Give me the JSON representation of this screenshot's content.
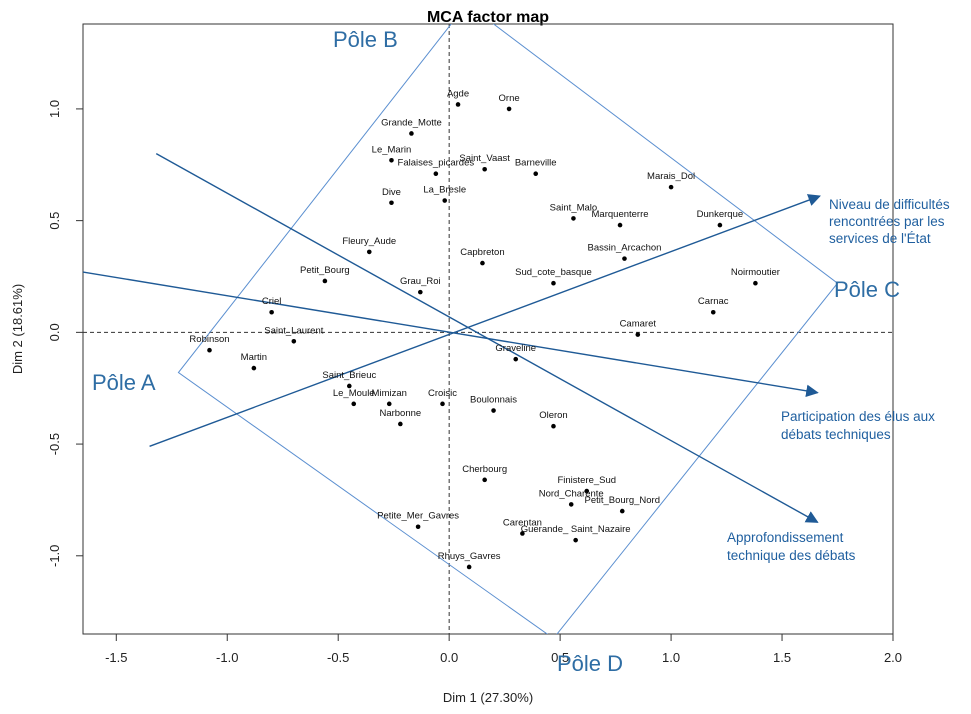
{
  "chart_data": {
    "type": "scatter",
    "title": "MCA factor map",
    "xlabel": "Dim 1 (27.30%)",
    "ylabel": "Dim 2 (18.61%)",
    "xlim": [
      -1.65,
      2.0
    ],
    "ylim": [
      -1.35,
      1.38
    ],
    "xticks": [
      -1.5,
      -1.0,
      -0.5,
      0.0,
      0.5,
      1.0,
      1.5,
      2.0
    ],
    "xtick_labels": [
      "-1.5",
      "-1.0",
      "-0.5",
      "0.0",
      "0.5",
      "1.0",
      "1.5",
      "2.0"
    ],
    "yticks": [
      -1.0,
      -0.5,
      0.0,
      0.5,
      1.0
    ],
    "ytick_labels": [
      "-1.0",
      "-0.5",
      "0.0",
      "0.5",
      "1.0"
    ],
    "reference_lines": {
      "x": 0,
      "y": 0,
      "style": "dashed"
    },
    "points": [
      {
        "label": "Agde",
        "x": 0.04,
        "y": 1.02
      },
      {
        "label": "Orne",
        "x": 0.27,
        "y": 1.0
      },
      {
        "label": "Grande_Motte",
        "x": -0.17,
        "y": 0.89
      },
      {
        "label": "Le_Marin",
        "x": -0.26,
        "y": 0.77
      },
      {
        "label": "Falaises_picardes",
        "x": -0.06,
        "y": 0.71
      },
      {
        "label": "Saint_Vaast",
        "x": 0.16,
        "y": 0.73
      },
      {
        "label": "Barneville",
        "x": 0.39,
        "y": 0.71
      },
      {
        "label": "Marais_Dol",
        "x": 1.0,
        "y": 0.65
      },
      {
        "label": "Dive",
        "x": -0.26,
        "y": 0.58
      },
      {
        "label": "La_Bresle",
        "x": -0.02,
        "y": 0.59
      },
      {
        "label": "Saint_Malo",
        "x": 0.56,
        "y": 0.51
      },
      {
        "label": "Marquenterre",
        "x": 0.77,
        "y": 0.48
      },
      {
        "label": "Dunkerque",
        "x": 1.22,
        "y": 0.48
      },
      {
        "label": "Fleury_Aude",
        "x": -0.36,
        "y": 0.36
      },
      {
        "label": "Capbreton",
        "x": 0.15,
        "y": 0.31
      },
      {
        "label": "Bassin_Arcachon",
        "x": 0.79,
        "y": 0.33
      },
      {
        "label": "Petit_Bourg",
        "x": -0.56,
        "y": 0.23
      },
      {
        "label": "Grau_Roi",
        "x": -0.13,
        "y": 0.18
      },
      {
        "label": "Sud_cote_basque",
        "x": 0.47,
        "y": 0.22
      },
      {
        "label": "Noirmoutier",
        "x": 1.38,
        "y": 0.22
      },
      {
        "label": "Criel",
        "x": -0.8,
        "y": 0.09
      },
      {
        "label": "Carnac",
        "x": 1.19,
        "y": 0.09
      },
      {
        "label": "Camaret",
        "x": 0.85,
        "y": -0.01
      },
      {
        "label": "Saint_Laurent",
        "x": -0.7,
        "y": -0.04
      },
      {
        "label": "Robinson",
        "x": -1.08,
        "y": -0.08
      },
      {
        "label": "Martin",
        "x": -0.88,
        "y": -0.16
      },
      {
        "label": "Graveline",
        "x": 0.3,
        "y": -0.12
      },
      {
        "label": "Saint_Brieuc",
        "x": -0.45,
        "y": -0.24
      },
      {
        "label": "Le_Moule",
        "x": -0.43,
        "y": -0.32
      },
      {
        "label": "Mimizan",
        "x": -0.27,
        "y": -0.32
      },
      {
        "label": "Croisic",
        "x": -0.03,
        "y": -0.32
      },
      {
        "label": "Boulonnais",
        "x": 0.2,
        "y": -0.35
      },
      {
        "label": "Narbonne",
        "x": -0.22,
        "y": -0.41
      },
      {
        "label": "Oleron",
        "x": 0.47,
        "y": -0.42
      },
      {
        "label": "Cherbourg",
        "x": 0.16,
        "y": -0.66
      },
      {
        "label": "Finistere_Sud",
        "x": 0.62,
        "y": -0.71
      },
      {
        "label": "Nord_Charente",
        "x": 0.55,
        "y": -0.77
      },
      {
        "label": "Petit_Bourg_Nord",
        "x": 0.78,
        "y": -0.8
      },
      {
        "label": "Petite_Mer_Gavres",
        "x": -0.14,
        "y": -0.87
      },
      {
        "label": "Carentan",
        "x": 0.33,
        "y": -0.9
      },
      {
        "label": "Guerande_Saint_Nazaire",
        "x": 0.57,
        "y": -0.93
      },
      {
        "label": "Rhuys_Gavres",
        "x": 0.09,
        "y": -1.05
      }
    ],
    "point_labels": [
      {
        "text": "Agde",
        "x": 0.04,
        "y": 1.02
      },
      {
        "text": "Orne",
        "x": 0.27,
        "y": 1.0
      },
      {
        "text": "Grande_Motte",
        "x": -0.17,
        "y": 0.89
      },
      {
        "text": "Le_Marin",
        "x": -0.26,
        "y": 0.77
      },
      {
        "text": "Falaises_picardes",
        "x": -0.06,
        "y": 0.71
      },
      {
        "text": "Saint_Vaast",
        "x": 0.16,
        "y": 0.73
      },
      {
        "text": "Barneville",
        "x": 0.39,
        "y": 0.71
      },
      {
        "text": "Marais_Dol",
        "x": 1.0,
        "y": 0.65
      },
      {
        "text": "Dive",
        "x": -0.26,
        "y": 0.58
      },
      {
        "text": "La_Bresle",
        "x": -0.02,
        "y": 0.59
      },
      {
        "text": "Saint_Malo",
        "x": 0.56,
        "y": 0.51
      },
      {
        "text": "Marquenterre",
        "x": 0.77,
        "y": 0.48
      },
      {
        "text": "Dunkerque",
        "x": 1.22,
        "y": 0.48
      },
      {
        "text": "Fleury_Aude",
        "x": -0.36,
        "y": 0.36
      },
      {
        "text": "Capbreton",
        "x": 0.15,
        "y": 0.31
      },
      {
        "text": "Bassin_Arcachon",
        "x": 0.79,
        "y": 0.33
      },
      {
        "text": "Petit_Bourg",
        "x": -0.56,
        "y": 0.23
      },
      {
        "text": "Grau_Roi",
        "x": -0.13,
        "y": 0.18
      },
      {
        "text": "Sud_cote_basque",
        "x": 0.47,
        "y": 0.22
      },
      {
        "text": "Noirmoutier",
        "x": 1.38,
        "y": 0.22
      },
      {
        "text": "Criel",
        "x": -0.8,
        "y": 0.09
      },
      {
        "text": "Carnac",
        "x": 1.19,
        "y": 0.09
      },
      {
        "text": "Camaret",
        "x": 0.85,
        "y": -0.01
      },
      {
        "text": "Saint_Laurent",
        "x": -0.7,
        "y": -0.04
      },
      {
        "text": "Robinson",
        "x": -1.08,
        "y": -0.08
      },
      {
        "text": "Martin",
        "x": -0.88,
        "y": -0.16
      },
      {
        "text": "Graveline",
        "x": 0.3,
        "y": -0.12
      },
      {
        "text": "Saint_Brieuc",
        "x": -0.45,
        "y": -0.24
      },
      {
        "text": "Le_Moule",
        "x": -0.43,
        "y": -0.32
      },
      {
        "text": "Mimizan",
        "x": -0.27,
        "y": -0.32
      },
      {
        "text": "Croisic",
        "x": -0.03,
        "y": -0.32
      },
      {
        "text": "Boulonnais",
        "x": 0.2,
        "y": -0.35
      },
      {
        "text": "Narbonne",
        "x": -0.22,
        "y": -0.41
      },
      {
        "text": "Oleron",
        "x": 0.47,
        "y": -0.42
      },
      {
        "text": "Cherbourg",
        "x": 0.16,
        "y": -0.66
      },
      {
        "text": "Finistere_Sud",
        "x": 0.62,
        "y": -0.71
      },
      {
        "text": "Nord_Charente",
        "x": 0.55,
        "y": -0.77
      },
      {
        "text": "Petit_Bourg_Nord",
        "x": 0.78,
        "y": -0.8
      },
      {
        "text": "Petite_Mer_Gavres",
        "x": -0.14,
        "y": -0.87
      },
      {
        "text": "Carentan",
        "x": 0.33,
        "y": -0.9
      },
      {
        "text": "Guerande_ Saint_Nazaire",
        "x": 0.57,
        "y": -0.93
      },
      {
        "text": "Rhuys_Gavres",
        "x": 0.09,
        "y": -1.05
      }
    ],
    "quadrilateral": [
      {
        "x": 0.08,
        "y": 1.47
      },
      {
        "x": 1.75,
        "y": 0.22
      },
      {
        "x": 0.47,
        "y": -1.37
      },
      {
        "x": -1.22,
        "y": -0.18
      }
    ],
    "arrows": [
      {
        "from": [
          -1.32,
          0.8
        ],
        "to": [
          1.66,
          -0.85
        ],
        "arrowhead": true
      },
      {
        "from": [
          -1.65,
          0.27
        ],
        "to": [
          1.66,
          -0.27
        ],
        "arrowhead": true
      },
      {
        "from": [
          -1.35,
          -0.51
        ],
        "to": [
          1.67,
          0.61
        ],
        "arrowhead": true
      }
    ],
    "annotations": {
      "pole_a": "Pôle A",
      "pole_b": "Pôle B",
      "pole_c": "Pôle C",
      "pole_d": "Pôle D",
      "difficultes": [
        "Niveau de difficultés",
        "rencontrées par les",
        "services de l'État"
      ],
      "participation": [
        "Participation des élus aux",
        "débats techniques"
      ],
      "approfondissement": [
        "Approfondissement",
        "technique des débats"
      ]
    },
    "colors": {
      "points": "#000000",
      "arrows": "#1f5a96",
      "quadrilateral": "#5b8fd0",
      "pole_text": "#2e6da4",
      "anno_text": "#1f5f9f"
    }
  }
}
